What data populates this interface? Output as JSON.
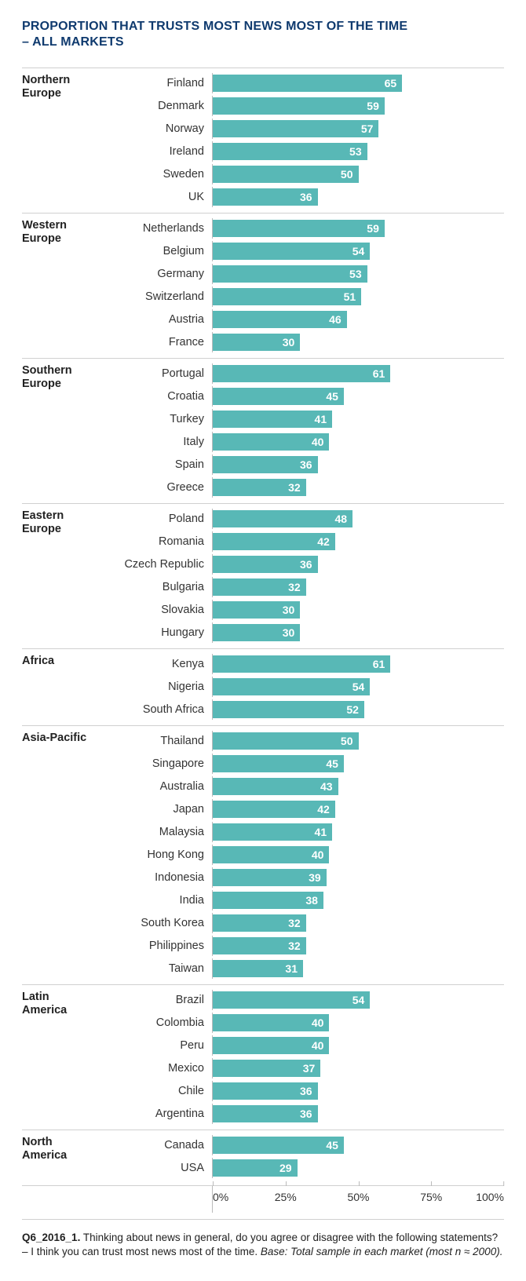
{
  "title_line1": "PROPORTION THAT TRUSTS MOST NEWS MOST OF THE TIME",
  "title_line2": "– ALL MARKETS",
  "title_color": "#0f3a6e",
  "bar_color": "#58b8b6",
  "value_text_color": "#ffffff",
  "axis": {
    "min": 0,
    "max": 100,
    "ticks": [
      {
        "value": 0,
        "label": "0%"
      },
      {
        "value": 25,
        "label": "25%"
      },
      {
        "value": 50,
        "label": "50%"
      },
      {
        "value": 75,
        "label": "75%"
      },
      {
        "value": 100,
        "label": "100%"
      }
    ]
  },
  "groups": [
    {
      "label": "Northern Europe",
      "rows": [
        {
          "country": "Finland",
          "value": 65
        },
        {
          "country": "Denmark",
          "value": 59
        },
        {
          "country": "Norway",
          "value": 57
        },
        {
          "country": "Ireland",
          "value": 53
        },
        {
          "country": "Sweden",
          "value": 50
        },
        {
          "country": "UK",
          "value": 36
        }
      ]
    },
    {
      "label": "Western Europe",
      "rows": [
        {
          "country": "Netherlands",
          "value": 59
        },
        {
          "country": "Belgium",
          "value": 54
        },
        {
          "country": "Germany",
          "value": 53
        },
        {
          "country": "Switzerland",
          "value": 51
        },
        {
          "country": "Austria",
          "value": 46
        },
        {
          "country": "France",
          "value": 30
        }
      ]
    },
    {
      "label": "Southern Europe",
      "rows": [
        {
          "country": "Portugal",
          "value": 61
        },
        {
          "country": "Croatia",
          "value": 45
        },
        {
          "country": "Turkey",
          "value": 41
        },
        {
          "country": "Italy",
          "value": 40
        },
        {
          "country": "Spain",
          "value": 36
        },
        {
          "country": "Greece",
          "value": 32
        }
      ]
    },
    {
      "label": "Eastern Europe",
      "rows": [
        {
          "country": "Poland",
          "value": 48
        },
        {
          "country": "Romania",
          "value": 42
        },
        {
          "country": "Czech Republic",
          "value": 36
        },
        {
          "country": "Bulgaria",
          "value": 32
        },
        {
          "country": "Slovakia",
          "value": 30
        },
        {
          "country": "Hungary",
          "value": 30
        }
      ]
    },
    {
      "label": "Africa",
      "rows": [
        {
          "country": "Kenya",
          "value": 61
        },
        {
          "country": "Nigeria",
          "value": 54
        },
        {
          "country": "South Africa",
          "value": 52
        }
      ]
    },
    {
      "label": "Asia-Pacific",
      "rows": [
        {
          "country": "Thailand",
          "value": 50
        },
        {
          "country": "Singapore",
          "value": 45
        },
        {
          "country": "Australia",
          "value": 43
        },
        {
          "country": "Japan",
          "value": 42
        },
        {
          "country": "Malaysia",
          "value": 41
        },
        {
          "country": "Hong Kong",
          "value": 40
        },
        {
          "country": "Indonesia",
          "value": 39
        },
        {
          "country": "India",
          "value": 38
        },
        {
          "country": "South Korea",
          "value": 32
        },
        {
          "country": "Philippines",
          "value": 32
        },
        {
          "country": "Taiwan",
          "value": 31
        }
      ]
    },
    {
      "label": "Latin America",
      "rows": [
        {
          "country": "Brazil",
          "value": 54
        },
        {
          "country": "Colombia",
          "value": 40
        },
        {
          "country": "Peru",
          "value": 40
        },
        {
          "country": "Mexico",
          "value": 37
        },
        {
          "country": "Chile",
          "value": 36
        },
        {
          "country": "Argentina",
          "value": 36
        }
      ]
    },
    {
      "label": "North America",
      "rows": [
        {
          "country": "Canada",
          "value": 45
        },
        {
          "country": "USA",
          "value": 29
        }
      ]
    }
  ],
  "footer": {
    "lead": "Q6_2016_1.",
    "body": " Thinking about news in general, do you agree or disagree with the following statements? – I think you can trust most news most of the time. ",
    "base": "Base: Total sample in each market (most n ≈ 2000)."
  }
}
